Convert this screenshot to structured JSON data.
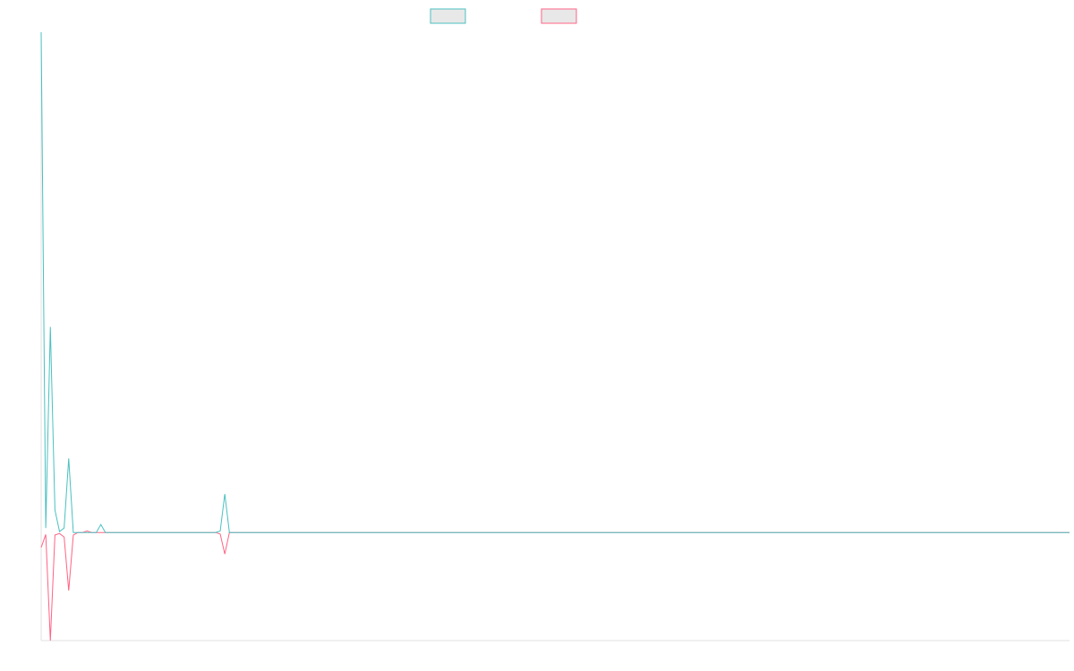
{
  "chart_data": {
    "type": "line",
    "xlim": [
      0,
      224
    ],
    "ylim": [
      -21.6,
      100
    ],
    "series": [
      {
        "color": "#4bc0c0",
        "values": [
          100,
          0.9,
          41.1,
          4.5,
          0.2,
          0.9,
          14.8,
          0,
          0,
          0,
          0,
          0,
          0,
          1.6,
          0,
          0,
          0,
          0,
          0,
          0,
          0,
          0,
          0,
          0,
          0,
          0,
          0,
          0,
          0,
          0,
          0,
          0,
          0,
          0,
          0,
          0,
          0,
          0,
          0,
          0.3,
          7.7,
          0,
          0,
          0,
          0,
          0,
          0,
          0,
          0,
          0,
          0,
          0,
          0,
          0,
          0,
          0,
          0,
          0,
          0,
          0,
          0,
          0,
          0,
          0,
          0,
          0,
          0,
          0,
          0,
          0,
          0,
          0,
          0,
          0,
          0,
          0,
          0,
          0,
          0,
          0,
          0,
          0,
          0,
          0,
          0,
          0,
          0,
          0,
          0,
          0,
          0,
          0,
          0,
          0,
          0,
          0,
          0,
          0,
          0,
          0,
          0,
          0,
          0,
          0,
          0,
          0,
          0,
          0,
          0,
          0,
          0,
          0,
          0,
          0,
          0,
          0,
          0,
          0,
          0,
          0,
          0,
          0,
          0,
          0,
          0,
          0,
          0,
          0,
          0,
          0,
          0,
          0,
          0,
          0,
          0,
          0,
          0,
          0,
          0,
          0,
          0,
          0,
          0,
          0,
          0,
          0,
          0,
          0,
          0,
          0,
          0,
          0,
          0,
          0,
          0,
          0,
          0,
          0,
          0,
          0,
          0,
          0,
          0,
          0,
          0,
          0,
          0,
          0,
          0,
          0,
          0,
          0,
          0,
          0,
          0,
          0,
          0,
          0,
          0,
          0,
          0,
          0,
          0,
          0,
          0,
          0,
          0,
          0,
          0,
          0,
          0,
          0,
          0,
          0,
          0,
          0,
          0,
          0,
          0,
          0,
          0,
          0,
          0,
          0,
          0,
          0,
          0,
          0,
          0,
          0,
          0,
          0,
          0,
          0,
          0,
          0,
          0,
          0,
          0,
          0,
          0,
          0,
          0,
          0,
          0
        ]
      },
      {
        "color": "#ff6384",
        "values": [
          -3,
          -0.4,
          -21.6,
          -0.5,
          -0.2,
          -0.9,
          -11.6,
          -0.5,
          0,
          0,
          0.3,
          0,
          0,
          0,
          0,
          0,
          0,
          0,
          0,
          0,
          0,
          0,
          0,
          0,
          0,
          0,
          0,
          0,
          0,
          0,
          0,
          0,
          0,
          0,
          0,
          0,
          0,
          0,
          0,
          -0.3,
          -4.3,
          0,
          0,
          0,
          0,
          0,
          0,
          0,
          0,
          0,
          0,
          0,
          0,
          0,
          0,
          0,
          0,
          0,
          0,
          0,
          0,
          0,
          0,
          0,
          0,
          0,
          0,
          0,
          0,
          0,
          0,
          0,
          0,
          0,
          0,
          0,
          0,
          0,
          0,
          0,
          0,
          0,
          0,
          0,
          0,
          0,
          0,
          0,
          0,
          0,
          0,
          0,
          0,
          0,
          0,
          0,
          0,
          0,
          0,
          0,
          0,
          0,
          0,
          0,
          0,
          0,
          0,
          0,
          0,
          0,
          0,
          0,
          0,
          0,
          0,
          0,
          0,
          0,
          0,
          0,
          0,
          0,
          0,
          0,
          0,
          0,
          0,
          0,
          0,
          0,
          0,
          0,
          0,
          0,
          0,
          0,
          0,
          0,
          0,
          0,
          0,
          0,
          0,
          0,
          0,
          0,
          0,
          0,
          0,
          0,
          0,
          0,
          0,
          0,
          0,
          0,
          0,
          0,
          0,
          0,
          0,
          0,
          0,
          0,
          0,
          0,
          0,
          0,
          0,
          0,
          0,
          0,
          0,
          0,
          0,
          0,
          0,
          0,
          0,
          0,
          0,
          0,
          0,
          0,
          0,
          0,
          0,
          0,
          0,
          0,
          0,
          0,
          0,
          0,
          0,
          0,
          0,
          0,
          0,
          0,
          0,
          0,
          0,
          0,
          0,
          0,
          0,
          0,
          0,
          0,
          0,
          0,
          0,
          0,
          0,
          0,
          0,
          0,
          0,
          0,
          0,
          0,
          0,
          0,
          0
        ]
      }
    ]
  }
}
